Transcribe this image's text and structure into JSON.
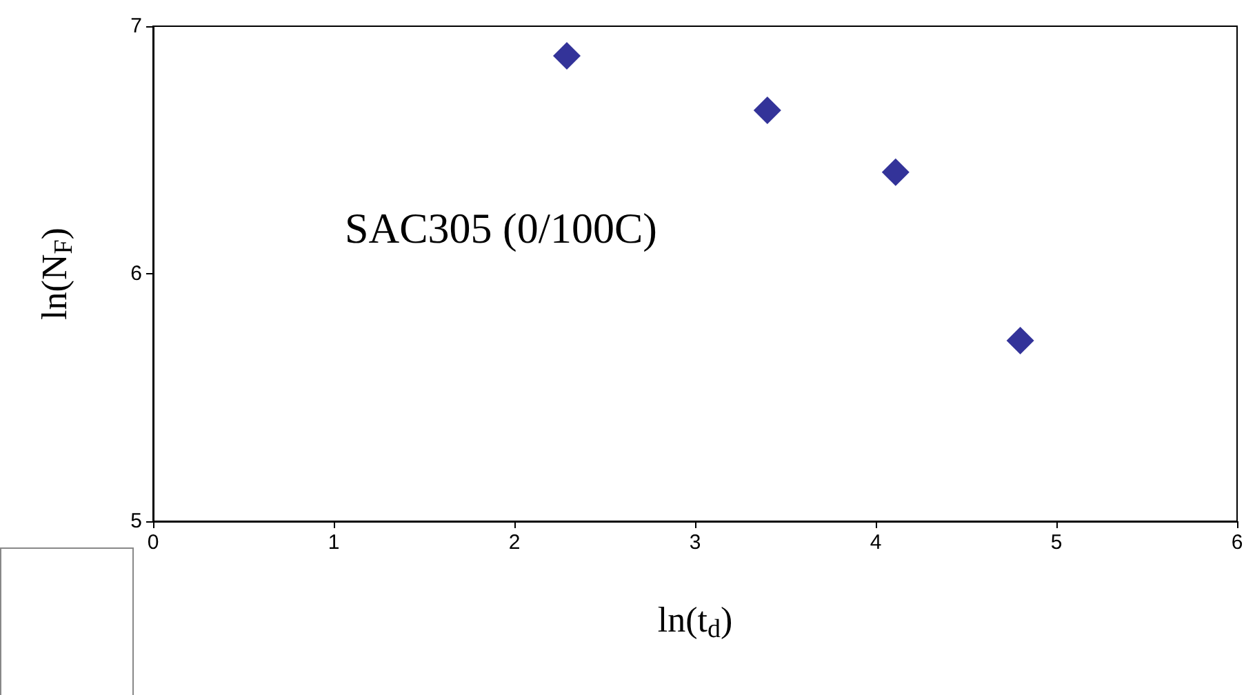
{
  "chart_data": {
    "type": "scatter",
    "xlabel": "ln(t$_{d}$)",
    "ylabel": "ln(N$_{F}$)",
    "annotations": [
      "SAC305 (0/100C)"
    ],
    "x": [
      2.29,
      3.4,
      4.11,
      4.8
    ],
    "series": [
      {
        "color": "#000080",
        "values": [
          6.88,
          6.66,
          6.41,
          5.73
        ]
      }
    ],
    "xlim": [
      0,
      6
    ],
    "xticks": [
      0,
      1,
      2,
      3,
      4,
      5,
      6
    ],
    "ylim": [
      5,
      7
    ],
    "yticks": [
      5,
      6,
      7
    ],
    "grid": false,
    "marker": "diamond"
  }
}
